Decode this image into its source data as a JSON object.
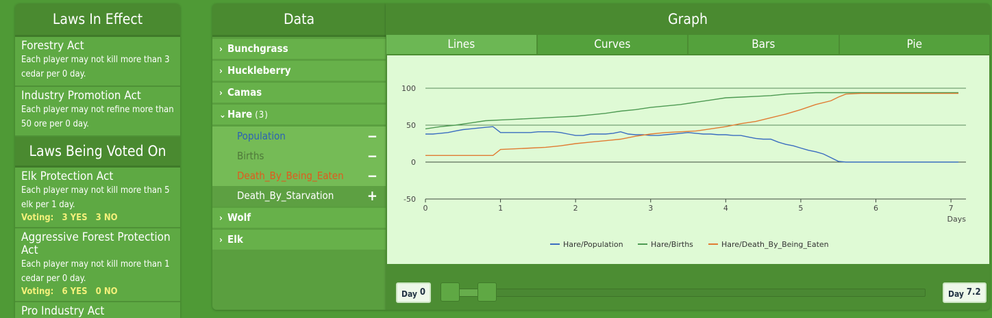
{
  "laws_panel": {
    "header": "Laws In Effect",
    "in_effect": [
      {
        "title": "Forestry Act",
        "desc": "Each player may not kill more than 3 cedar per 0 day."
      },
      {
        "title": "Industry Promotion Act",
        "desc": "Each player may not refine more than 50 ore per 0 day."
      }
    ],
    "voting_header": "Laws Being Voted On",
    "voting_label": "Voting:",
    "being_voted": [
      {
        "title": "Elk Protection Act",
        "desc": "Each player may not kill more than 5 elk per 1 day.",
        "yes": "3 YES",
        "no": "3 NO"
      },
      {
        "title": "Aggressive Forest Protection Act",
        "desc": "Each player may not kill more than 1 cedar per 0 day.",
        "yes": "6 YES",
        "no": "0 NO"
      },
      {
        "title": "Pro Industry Act",
        "desc": ""
      }
    ]
  },
  "data_panel": {
    "header": "Data",
    "items": [
      {
        "label": "Bunchgrass"
      },
      {
        "label": "Huckleberry"
      },
      {
        "label": "Camas"
      },
      {
        "label": "Hare",
        "count": "(3)"
      },
      {
        "label": "Wolf"
      },
      {
        "label": "Elk"
      }
    ],
    "hare_sub": [
      {
        "label": "Population",
        "color": "#2b62b5",
        "action": "−"
      },
      {
        "label": "Births",
        "color": "#4f7a3a",
        "action": "−"
      },
      {
        "label": "Death_By_Being_Eaten",
        "color": "#e05a1d",
        "action": "−"
      },
      {
        "label": "Death_By_Starvation",
        "color": "#ffffff",
        "action": "+"
      }
    ]
  },
  "graph_panel": {
    "header": "Graph",
    "tabs": [
      "Lines",
      "Curves",
      "Bars",
      "Pie"
    ],
    "active_tab": "Lines"
  },
  "timebar": {
    "start_label": "Day",
    "start_value": "0",
    "end_label": "Day",
    "end_value": "7.2"
  },
  "chart_data": {
    "type": "line",
    "xlabel": "Days",
    "ylabel": "",
    "xlim": [
      0,
      7.2
    ],
    "ylim": [
      -50,
      100
    ],
    "xticks": [
      0,
      1,
      2,
      3,
      4,
      5,
      6,
      7
    ],
    "yticks": [
      100,
      50,
      0,
      -50
    ],
    "grid": "horizontal",
    "legend_position": "bottom",
    "series": [
      {
        "name": "Hare/Population",
        "color": "#3a6cc0",
        "x": [
          0,
          0.1,
          0.2,
          0.3,
          0.4,
          0.5,
          0.6,
          0.7,
          0.8,
          0.9,
          1.0,
          1.1,
          1.2,
          1.3,
          1.4,
          1.5,
          1.6,
          1.7,
          1.8,
          1.9,
          2.0,
          2.1,
          2.2,
          2.3,
          2.4,
          2.5,
          2.6,
          2.7,
          2.8,
          2.9,
          3.0,
          3.1,
          3.2,
          3.3,
          3.4,
          3.5,
          3.6,
          3.7,
          3.8,
          3.9,
          4.0,
          4.1,
          4.2,
          4.3,
          4.4,
          4.5,
          4.6,
          4.7,
          4.8,
          4.9,
          5.0,
          5.1,
          5.2,
          5.3,
          5.4,
          5.5,
          5.6,
          5.8,
          6.0,
          6.5,
          7.0,
          7.1
        ],
        "y": [
          38,
          38,
          39,
          40,
          42,
          44,
          45,
          46,
          47,
          48,
          40,
          40,
          40,
          40,
          40,
          41,
          41,
          41,
          40,
          38,
          36,
          36,
          38,
          38,
          38,
          39,
          41,
          38,
          37,
          37,
          36,
          36,
          37,
          38,
          39,
          40,
          39,
          38,
          38,
          37,
          37,
          36,
          36,
          34,
          32,
          31,
          31,
          27,
          24,
          22,
          19,
          16,
          14,
          11,
          6,
          1,
          0,
          0,
          0,
          0,
          0,
          0
        ]
      },
      {
        "name": "Hare/Births",
        "color": "#4d9a52",
        "x": [
          0,
          0.2,
          0.4,
          0.6,
          0.8,
          1.0,
          1.2,
          1.4,
          1.6,
          1.8,
          2.0,
          2.2,
          2.4,
          2.6,
          2.8,
          3.0,
          3.2,
          3.4,
          3.6,
          3.8,
          4.0,
          4.2,
          4.4,
          4.6,
          4.8,
          5.0,
          5.2,
          5.4,
          5.6,
          5.8,
          6.0,
          6.5,
          7.0,
          7.1
        ],
        "y": [
          45,
          48,
          50,
          53,
          56,
          57,
          58,
          59,
          60,
          61,
          62,
          64,
          66,
          69,
          71,
          74,
          76,
          78,
          81,
          84,
          87,
          88,
          89,
          90,
          92,
          93,
          94,
          94,
          94,
          94,
          94,
          94,
          94,
          94
        ]
      },
      {
        "name": "Hare/Death_By_Being_Eaten",
        "color": "#e07b32",
        "x": [
          0,
          0.2,
          0.4,
          0.6,
          0.8,
          0.9,
          1.0,
          1.2,
          1.4,
          1.6,
          1.8,
          2.0,
          2.2,
          2.4,
          2.6,
          2.8,
          3.0,
          3.2,
          3.4,
          3.6,
          3.8,
          4.0,
          4.2,
          4.4,
          4.6,
          4.8,
          5.0,
          5.2,
          5.4,
          5.5,
          5.6,
          5.8,
          6.0,
          6.5,
          7.0,
          7.1
        ],
        "y": [
          9,
          9,
          9,
          9,
          9,
          9,
          17,
          18,
          19,
          20,
          22,
          25,
          27,
          29,
          31,
          35,
          38,
          40,
          41,
          42,
          45,
          48,
          52,
          55,
          60,
          65,
          71,
          78,
          83,
          88,
          92,
          93,
          93,
          93,
          93,
          93
        ]
      }
    ]
  }
}
